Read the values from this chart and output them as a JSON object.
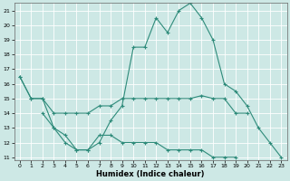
{
  "x": [
    0,
    1,
    2,
    3,
    4,
    5,
    6,
    7,
    8,
    9,
    10,
    11,
    12,
    13,
    14,
    15,
    16,
    17,
    18,
    19,
    20,
    21,
    22,
    23
  ],
  "line1": [
    16.5,
    15.0,
    15.0,
    14.0,
    14.0,
    14.0,
    14.0,
    14.5,
    14.5,
    15.0,
    15.0,
    15.0,
    15.0,
    15.0,
    15.0,
    15.0,
    15.2,
    15.0,
    15.0,
    14.0,
    14.0,
    null,
    null,
    null
  ],
  "line2": [
    16.5,
    15.0,
    15.0,
    13.0,
    12.0,
    11.5,
    11.5,
    12.0,
    13.5,
    14.5,
    18.5,
    18.5,
    20.5,
    19.5,
    21.0,
    21.5,
    20.5,
    19.0,
    16.0,
    15.5,
    14.5,
    13.0,
    12.0,
    11.0
  ],
  "line3": [
    null,
    null,
    14.0,
    13.0,
    12.5,
    11.5,
    11.5,
    12.5,
    12.5,
    12.0,
    12.0,
    12.0,
    12.0,
    11.5,
    11.5,
    11.5,
    11.5,
    11.0,
    11.0,
    11.0,
    null,
    null,
    null,
    null
  ],
  "xlim": [
    -0.5,
    23.5
  ],
  "ylim": [
    10.8,
    21.5
  ],
  "yticks": [
    11,
    12,
    13,
    14,
    15,
    16,
    17,
    18,
    19,
    20,
    21
  ],
  "xticks": [
    0,
    1,
    2,
    3,
    4,
    5,
    6,
    7,
    8,
    9,
    10,
    11,
    12,
    13,
    14,
    15,
    16,
    17,
    18,
    19,
    20,
    21,
    22,
    23
  ],
  "xlabel": "Humidex (Indice chaleur)",
  "line_color": "#2e8b7a",
  "bg_color": "#cde8e5",
  "grid_color": "#b8d8d5"
}
